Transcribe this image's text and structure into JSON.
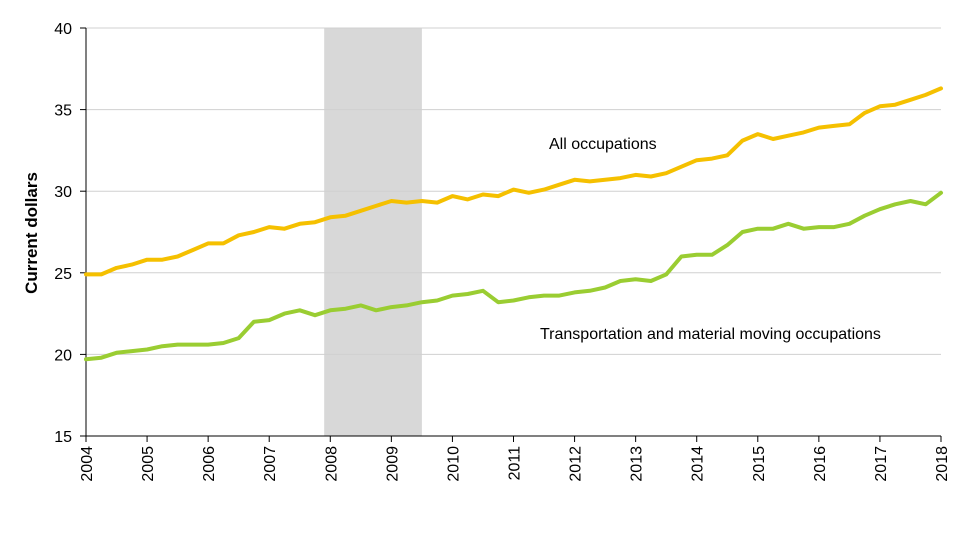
{
  "chart_data": {
    "type": "line",
    "title": "",
    "xlabel": "",
    "ylabel": "Current dollars",
    "xlim": [
      2004,
      2018
    ],
    "ylim": [
      15,
      40
    ],
    "yticks": [
      "15",
      "20",
      "25",
      "30",
      "35",
      "40"
    ],
    "xticks": [
      "2004",
      "2005",
      "2006",
      "2007",
      "2008",
      "2009",
      "2010",
      "2011",
      "2012",
      "2013",
      "2014",
      "2015",
      "2016",
      "2017",
      "2018"
    ],
    "grid": "horizontal",
    "recession": {
      "start": 2007.9,
      "end": 2009.5
    },
    "series": [
      {
        "name": "All occupations",
        "color": "#f5c000",
        "x": [
          2004,
          2004.25,
          2004.5,
          2004.75,
          2005,
          2005.25,
          2005.5,
          2005.75,
          2006,
          2006.25,
          2006.5,
          2006.75,
          2007,
          2007.25,
          2007.5,
          2007.75,
          2008,
          2008.25,
          2008.5,
          2008.75,
          2009,
          2009.25,
          2009.5,
          2009.75,
          2010,
          2010.25,
          2010.5,
          2010.75,
          2011,
          2011.25,
          2011.5,
          2011.75,
          2012,
          2012.25,
          2012.5,
          2012.75,
          2013,
          2013.25,
          2013.5,
          2013.75,
          2014,
          2014.25,
          2014.5,
          2014.75,
          2015,
          2015.25,
          2015.5,
          2015.75,
          2016,
          2016.25,
          2016.5,
          2016.75,
          2017,
          2017.25,
          2017.5,
          2017.75,
          2018
        ],
        "values": [
          24.9,
          24.9,
          25.3,
          25.5,
          25.8,
          25.8,
          26.0,
          26.4,
          26.8,
          26.8,
          27.3,
          27.5,
          27.8,
          27.7,
          28.0,
          28.1,
          28.4,
          28.5,
          28.8,
          29.1,
          29.4,
          29.3,
          29.4,
          29.3,
          29.7,
          29.5,
          29.8,
          29.7,
          30.1,
          29.9,
          30.1,
          30.4,
          30.7,
          30.6,
          30.7,
          30.8,
          31.0,
          30.9,
          31.1,
          31.5,
          31.9,
          32.0,
          32.2,
          33.1,
          33.5,
          33.2,
          33.4,
          33.6,
          33.9,
          34.0,
          34.1,
          34.8,
          35.2,
          35.3,
          35.6,
          35.9,
          36.3
        ]
      },
      {
        "name": "Transportation and material moving occupations",
        "color": "#9acd32",
        "x": [
          2004,
          2004.25,
          2004.5,
          2004.75,
          2005,
          2005.25,
          2005.5,
          2005.75,
          2006,
          2006.25,
          2006.5,
          2006.75,
          2007,
          2007.25,
          2007.5,
          2007.75,
          2008,
          2008.25,
          2008.5,
          2008.75,
          2009,
          2009.25,
          2009.5,
          2009.75,
          2010,
          2010.25,
          2010.5,
          2010.75,
          2011,
          2011.25,
          2011.5,
          2011.75,
          2012,
          2012.25,
          2012.5,
          2012.75,
          2013,
          2013.25,
          2013.5,
          2013.75,
          2014,
          2014.25,
          2014.5,
          2014.75,
          2015,
          2015.25,
          2015.5,
          2015.75,
          2016,
          2016.25,
          2016.5,
          2016.75,
          2017,
          2017.25,
          2017.5,
          2017.75,
          2018
        ],
        "values": [
          19.7,
          19.8,
          20.1,
          20.2,
          20.3,
          20.5,
          20.6,
          20.6,
          20.6,
          20.7,
          21.0,
          22.0,
          22.1,
          22.5,
          22.7,
          22.4,
          22.7,
          22.8,
          23.0,
          22.7,
          22.9,
          23.0,
          23.2,
          23.3,
          23.6,
          23.7,
          23.9,
          23.2,
          23.3,
          23.5,
          23.6,
          23.6,
          23.8,
          23.9,
          24.1,
          24.5,
          24.6,
          24.5,
          24.9,
          26.0,
          26.1,
          26.1,
          26.7,
          27.5,
          27.7,
          27.7,
          28.0,
          27.7,
          27.8,
          27.8,
          28.0,
          28.5,
          28.9,
          29.2,
          29.4,
          29.2,
          29.9
        ]
      }
    ]
  }
}
